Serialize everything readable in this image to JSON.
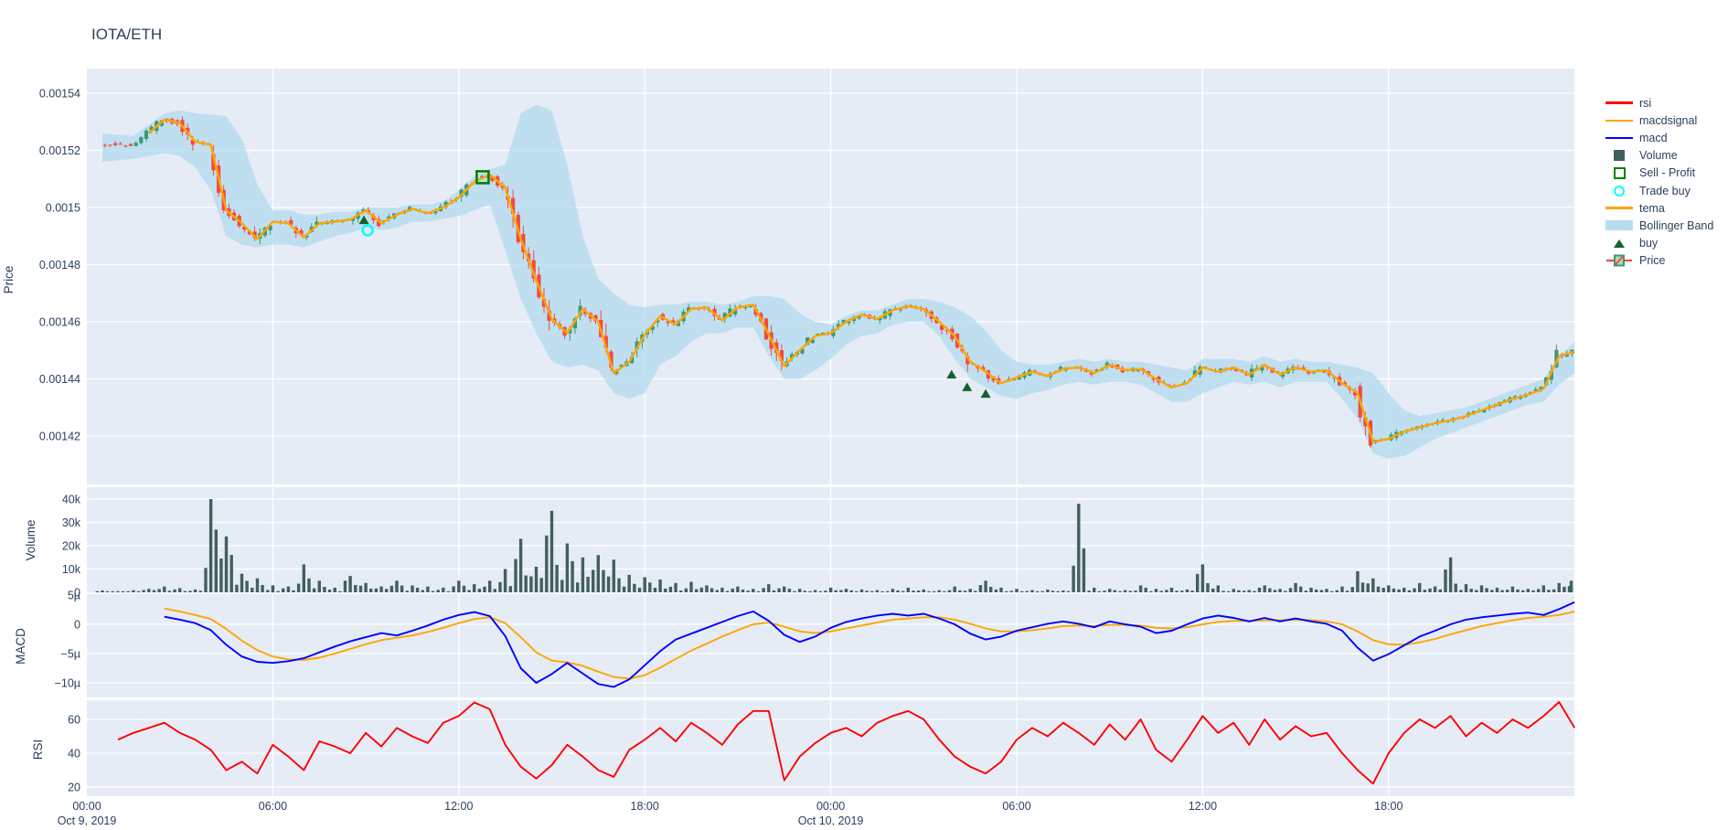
{
  "title": "IOTA/ETH",
  "axis_titles": {
    "price": "Price",
    "volume": "Volume",
    "macd": "MACD",
    "rsi": "RSI"
  },
  "colors": {
    "paper": "#ffffff",
    "plot_bg": "#e5ecf6",
    "grid": "#ffffff",
    "text": "#2a3f5f",
    "rsi": "#ff0000",
    "macd": "#0000ff",
    "macdsignal": "#ffa500",
    "tema": "#ffa500",
    "volume": "#42605b",
    "band": "#b9ddf0",
    "candle_up": "#3d9970",
    "candle_down": "#f4493f",
    "buy": "#14602c",
    "sell": "#008000",
    "trade_buy": "#00ffff"
  },
  "legend": {
    "items": [
      {
        "label": "rsi",
        "swatch": "line",
        "color": "#ff0000"
      },
      {
        "label": "macdsignal",
        "swatch": "line",
        "color": "#ffa500"
      },
      {
        "label": "macd",
        "swatch": "line",
        "color": "#0000ff"
      },
      {
        "label": "Volume",
        "swatch": "square-fill",
        "color": "#42605b"
      },
      {
        "label": "Sell - Profit",
        "swatch": "square-open",
        "color": "#008000"
      },
      {
        "label": "Trade buy",
        "swatch": "circle-open",
        "color": "#00ffff"
      },
      {
        "label": "tema",
        "swatch": "line",
        "color": "#ffa500"
      },
      {
        "label": "Bollinger Band",
        "swatch": "band",
        "color": "#b9ddf0"
      },
      {
        "label": "buy",
        "swatch": "triangle",
        "color": "#14602c"
      },
      {
        "label": "Price",
        "swatch": "candle",
        "color": "#3d9970"
      }
    ]
  },
  "chart_data": {
    "type": "candlestick",
    "title": "IOTA/ETH",
    "note": "Two-day intraday chart, Oct 9 00:00 to Oct 10 24:00 2019. Hours measured from Oct 9 00:00. Price values stored in 1e-6 units (1521.5 means 0.0015215).",
    "x_axis": {
      "range_hours": [
        0,
        48
      ],
      "ticks": [
        {
          "h": 0,
          "time": "00:00",
          "date": "Oct 9, 2019"
        },
        {
          "h": 6,
          "time": "06:00"
        },
        {
          "h": 12,
          "time": "12:00"
        },
        {
          "h": 18,
          "time": "18:00"
        },
        {
          "h": 24,
          "time": "00:00",
          "date": "Oct 10, 2019"
        },
        {
          "h": 30,
          "time": "06:00"
        },
        {
          "h": 36,
          "time": "12:00"
        },
        {
          "h": 42,
          "time": "18:00"
        }
      ]
    },
    "panels": [
      {
        "name": "price",
        "type": "candlestick",
        "ylabel": "Price",
        "yticks": {
          "labels": [
            "0.00154",
            "0.00152",
            "0.0015",
            "0.00148",
            "0.00146",
            "0.00144",
            "0.00142"
          ],
          "values_u": [
            1540,
            1520,
            1500,
            1480,
            1460,
            1440,
            1420
          ]
        },
        "ylim_u": [
          1403,
          1548.6
        ],
        "series": {
          "close": {
            "x0": 0.5,
            "dx": 0.5,
            "values": [
              1521.5,
              1522.2,
              1521.8,
              1526.0,
              1530.8,
              1529.5,
              1523.0,
              1522.0,
              1499.0,
              1494.5,
              1489.0,
              1495.0,
              1494.5,
              1489.5,
              1494.5,
              1495.0,
              1495.8,
              1499.0,
              1494.5,
              1497.5,
              1499.5,
              1498.0,
              1500.0,
              1503.5,
              1509.0,
              1511.5,
              1507.0,
              1489.0,
              1474.5,
              1461.0,
              1456.0,
              1464.5,
              1460.0,
              1442.0,
              1446.0,
              1455.5,
              1462.0,
              1459.0,
              1464.5,
              1465.0,
              1460.5,
              1465.0,
              1466.0,
              1455.5,
              1444.5,
              1450.0,
              1455.0,
              1456.0,
              1460.0,
              1462.5,
              1461.0,
              1464.0,
              1465.5,
              1464.5,
              1460.0,
              1455.0,
              1446.0,
              1442.5,
              1438.5,
              1440.5,
              1442.5,
              1441.0,
              1443.5,
              1444.0,
              1442.0,
              1445.0,
              1443.0,
              1443.5,
              1440.0,
              1437.0,
              1438.5,
              1444.0,
              1442.5,
              1444.0,
              1441.5,
              1445.0,
              1441.5,
              1444.0,
              1442.5,
              1443.0,
              1438.5,
              1435.0,
              1418.0,
              1419.0,
              1421.5,
              1423.0,
              1424.5,
              1425.5,
              1427.0,
              1429.0,
              1431.0,
              1433.0,
              1434.5,
              1436.5,
              1448.0,
              1449.5
            ]
          },
          "tema": {
            "same_as": "close",
            "from_h": 2.0
          },
          "bollinger_upper": {
            "x0": 0.5,
            "dx": 0.5,
            "values": [
              1526.0,
              1525.5,
              1525.0,
              1529.0,
              1533.0,
              1534.0,
              1533.0,
              1532.5,
              1532.0,
              1524.0,
              1508.0,
              1499.0,
              1499.0,
              1497.5,
              1497.5,
              1498.5,
              1498.5,
              1500.0,
              1500.0,
              1500.0,
              1501.0,
              1501.0,
              1502.0,
              1506.0,
              1511.0,
              1513.5,
              1515.0,
              1533.0,
              1536.0,
              1534.0,
              1515.0,
              1490.0,
              1475.0,
              1470.0,
              1466.0,
              1465.0,
              1466.0,
              1466.0,
              1467.0,
              1467.0,
              1466.0,
              1467.0,
              1469.0,
              1469.0,
              1468.0,
              1463.0,
              1460.0,
              1459.0,
              1462.0,
              1464.0,
              1464.0,
              1466.0,
              1468.0,
              1468.0,
              1467.0,
              1465.0,
              1462.0,
              1457.0,
              1450.0,
              1446.0,
              1445.0,
              1445.0,
              1446.0,
              1447.0,
              1446.0,
              1447.0,
              1446.0,
              1446.0,
              1445.0,
              1444.0,
              1443.0,
              1447.0,
              1447.0,
              1447.0,
              1446.0,
              1448.0,
              1446.0,
              1447.0,
              1446.0,
              1446.0,
              1445.0,
              1444.0,
              1442.0,
              1435.0,
              1429.0,
              1427.0,
              1428.0,
              1429.0,
              1430.0,
              1432.0,
              1434.0,
              1436.0,
              1438.0,
              1440.0,
              1448.0,
              1453.0
            ]
          },
          "bollinger_lower": {
            "x0": 0.5,
            "dx": 0.5,
            "values": [
              1516.0,
              1516.5,
              1517.0,
              1518.0,
              1519.0,
              1518.0,
              1514.0,
              1506.0,
              1490.0,
              1487.0,
              1486.0,
              1487.0,
              1487.0,
              1486.0,
              1488.0,
              1490.0,
              1491.0,
              1493.0,
              1492.0,
              1493.0,
              1495.0,
              1495.0,
              1496.0,
              1497.0,
              1499.0,
              1501.0,
              1485.0,
              1468.0,
              1456.0,
              1446.0,
              1444.0,
              1445.0,
              1443.0,
              1435.0,
              1433.0,
              1435.0,
              1445.0,
              1448.0,
              1453.0,
              1456.0,
              1456.0,
              1458.0,
              1458.0,
              1448.0,
              1440.0,
              1440.0,
              1443.0,
              1447.0,
              1452.0,
              1455.0,
              1456.0,
              1459.0,
              1460.0,
              1460.0,
              1455.0,
              1447.0,
              1440.0,
              1437.0,
              1434.0,
              1433.0,
              1435.0,
              1436.0,
              1438.0,
              1439.0,
              1438.0,
              1439.0,
              1439.0,
              1438.0,
              1435.0,
              1432.0,
              1432.0,
              1435.0,
              1437.0,
              1439.0,
              1438.0,
              1439.0,
              1437.0,
              1439.0,
              1439.0,
              1439.0,
              1433.0,
              1426.0,
              1414.0,
              1412.0,
              1413.0,
              1416.0,
              1419.0,
              1421.0,
              1423.0,
              1425.0,
              1427.0,
              1429.0,
              1431.0,
              1432.0,
              1438.0,
              1442.0
            ]
          }
        },
        "markers": {
          "buy": [
            {
              "h": 8.94,
              "p_u": 1495.5
            },
            {
              "h": 27.9,
              "p_u": 1441.4
            },
            {
              "h": 28.4,
              "p_u": 1437.0
            },
            {
              "h": 29.0,
              "p_u": 1434.7
            }
          ],
          "trade_buy": [
            {
              "h": 9.06,
              "p_u": 1492.0
            }
          ],
          "sell_profit": [
            {
              "h": 12.77,
              "p_u": 1510.6
            }
          ]
        }
      },
      {
        "name": "volume",
        "type": "bar",
        "ylabel": "Volume",
        "yticks": {
          "labels": [
            "0",
            "10k",
            "20k",
            "30k",
            "40k"
          ],
          "values": [
            0,
            10000,
            20000,
            30000,
            40000
          ]
        },
        "ylim": [
          0,
          45000
        ],
        "series": {
          "volume": {
            "x0": 0.5,
            "dx": 0.5,
            "values": [
              800,
              500,
              900,
              1500,
              2500,
              1800,
              1200,
              40000,
              24000,
              8000,
              6000,
              3000,
              2500,
              12000,
              5000,
              2000,
              7000,
              4000,
              2500,
              5000,
              3000,
              2500,
              2000,
              5000,
              3500,
              5000,
              10000,
              23000,
              11000,
              35000,
              21000,
              15000,
              16000,
              14000,
              7500,
              6500,
              5500,
              4000,
              4500,
              3000,
              2000,
              2500,
              1500,
              3500,
              2500,
              1500,
              1000,
              2000,
              1500,
              1200,
              1000,
              1500,
              2000,
              1200,
              900,
              2500,
              1500,
              5000,
              2000,
              1500,
              1000,
              1200,
              800,
              38000,
              2000,
              1500,
              1000,
              3000,
              1500,
              2000,
              1200,
              12000,
              3000,
              1500,
              1000,
              3000,
              1500,
              4000,
              2000,
              1500,
              2500,
              9000,
              6000,
              3000,
              2000,
              4000,
              2500,
              15000,
              3500,
              3000,
              2000,
              2500,
              1500,
              3000,
              4000,
              5000
            ]
          }
        }
      },
      {
        "name": "macd",
        "type": "line",
        "ylabel": "MACD",
        "yticks": {
          "labels": [
            "5µ",
            "0",
            "−5µ",
            "−10µ"
          ],
          "values": [
            5,
            0,
            -5,
            -10
          ]
        },
        "ylim": [
          -12.2,
          5.2
        ],
        "series": {
          "macd": {
            "x0": 2.5,
            "dx": 0.5,
            "values": [
              1.3,
              0.8,
              0.2,
              -1.0,
              -3.5,
              -5.5,
              -6.4,
              -6.6,
              -6.3,
              -5.8,
              -4.8,
              -3.8,
              -2.9,
              -2.2,
              -1.5,
              -1.9,
              -1.1,
              -0.2,
              0.8,
              1.6,
              2.1,
              1.4,
              -2.0,
              -7.5,
              -10.0,
              -8.5,
              -6.6,
              -8.4,
              -10.2,
              -10.7,
              -9.4,
              -7.0,
              -4.6,
              -2.6,
              -1.6,
              -0.6,
              0.4,
              1.4,
              2.2,
              0.6,
              -1.8,
              -3.0,
              -2.1,
              -0.6,
              0.4,
              1.0,
              1.5,
              1.8,
              1.5,
              1.8,
              1.0,
              0.0,
              -1.6,
              -2.6,
              -2.1,
              -1.1,
              -0.5,
              0.1,
              0.5,
              0.1,
              -0.5,
              0.5,
              0.0,
              -0.4,
              -1.5,
              -1.1,
              0.0,
              1.0,
              1.5,
              1.1,
              0.5,
              1.1,
              0.5,
              1.0,
              0.5,
              0.1,
              -1.1,
              -4.0,
              -6.2,
              -5.1,
              -3.6,
              -2.1,
              -1.1,
              0.0,
              0.8,
              1.2,
              1.5,
              1.8,
              2.0,
              1.6,
              2.6,
              3.8
            ]
          },
          "macdsignal": {
            "x0": 2.5,
            "dx": 0.5,
            "values": [
              2.7,
              2.2,
              1.6,
              0.9,
              -0.8,
              -2.8,
              -4.4,
              -5.5,
              -6.0,
              -6.1,
              -5.7,
              -5.0,
              -4.2,
              -3.4,
              -2.7,
              -2.3,
              -1.9,
              -1.3,
              -0.6,
              0.2,
              0.9,
              1.2,
              0.2,
              -2.2,
              -4.8,
              -6.2,
              -6.5,
              -7.1,
              -8.1,
              -9.0,
              -9.3,
              -8.7,
              -7.4,
              -5.9,
              -4.5,
              -3.3,
              -2.1,
              -1.0,
              0.0,
              0.3,
              -0.4,
              -1.2,
              -1.5,
              -1.2,
              -0.7,
              -0.2,
              0.3,
              0.8,
              1.0,
              1.2,
              1.2,
              0.8,
              0.1,
              -0.7,
              -1.2,
              -1.2,
              -1.0,
              -0.7,
              -0.3,
              -0.2,
              -0.3,
              -0.1,
              -0.1,
              -0.2,
              -0.6,
              -0.7,
              -0.5,
              0.0,
              0.4,
              0.6,
              0.6,
              0.7,
              0.7,
              0.8,
              0.7,
              0.5,
              0.0,
              -1.2,
              -2.7,
              -3.4,
              -3.5,
              -3.1,
              -2.5,
              -1.7,
              -1.0,
              -0.3,
              0.2,
              0.7,
              1.1,
              1.3,
              1.6,
              2.2
            ]
          }
        }
      },
      {
        "name": "rsi",
        "type": "line",
        "ylabel": "RSI",
        "yticks": {
          "labels": [
            "60",
            "40",
            "20"
          ],
          "values": [
            60,
            40,
            20
          ]
        },
        "ylim": [
          14,
          71.5
        ],
        "series": {
          "rsi": {
            "x0": 1.0,
            "dx": 0.5,
            "values": [
              48,
              52,
              55,
              58,
              52,
              48,
              42,
              30,
              35,
              28,
              45,
              38,
              30,
              47,
              44,
              40,
              52,
              44,
              55,
              50,
              46,
              58,
              62,
              70,
              66,
              45,
              32,
              25,
              33,
              45,
              38,
              30,
              26,
              42,
              48,
              55,
              47,
              58,
              52,
              45,
              57,
              65,
              65,
              24,
              38,
              46,
              52,
              55,
              50,
              58,
              62,
              65,
              60,
              48,
              38,
              32,
              28,
              35,
              48,
              55,
              50,
              58,
              52,
              45,
              57,
              48,
              60,
              42,
              35,
              48,
              62,
              52,
              58,
              45,
              60,
              48,
              56,
              50,
              52,
              40,
              30,
              22,
              40,
              52,
              60,
              55,
              62,
              50,
              58,
              52,
              60,
              55,
              62,
              71,
              55
            ]
          }
        }
      }
    ]
  }
}
